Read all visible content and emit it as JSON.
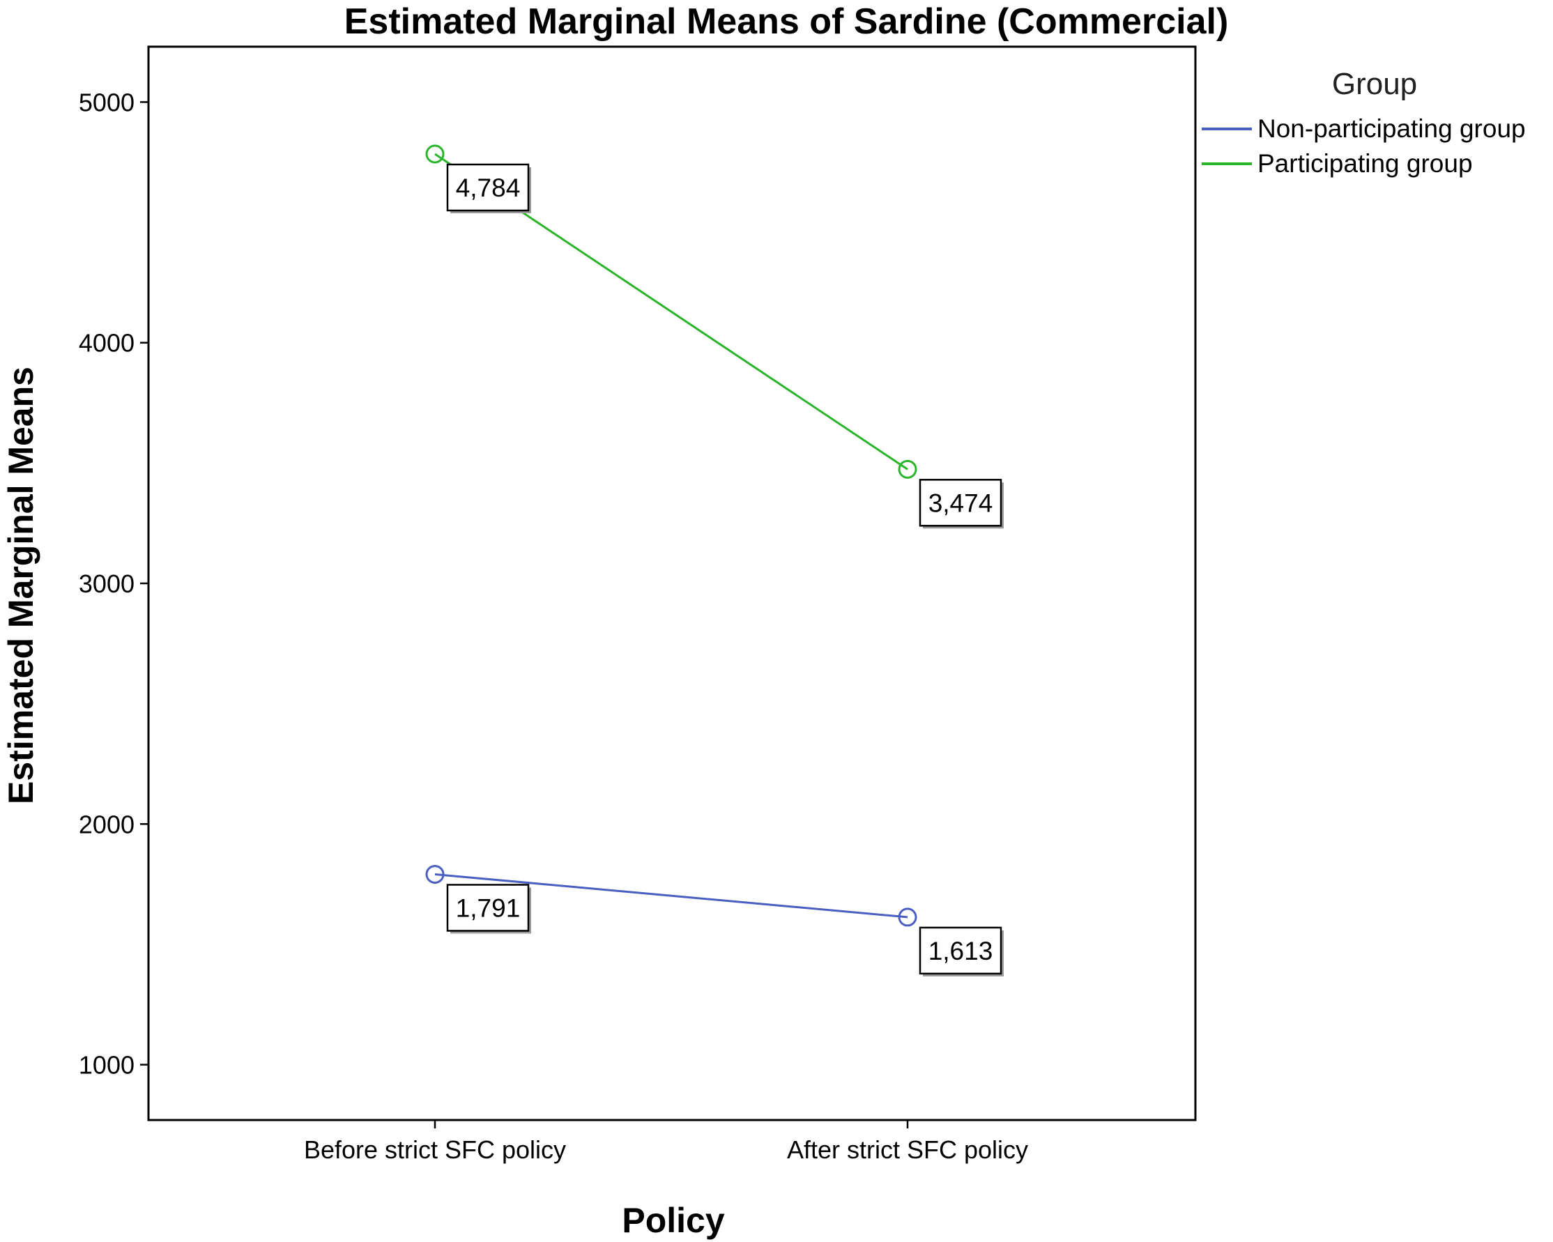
{
  "chart_data": {
    "type": "line",
    "title": "Estimated Marginal Means of Sardine (Commercial)",
    "xlabel": "Policy",
    "ylabel": "Estimated Marginal Means",
    "categories": [
      "Before strict SFC policy",
      "After strict SFC policy"
    ],
    "ylim": [
      770,
      5230
    ],
    "yticks": [
      1000,
      2000,
      3000,
      4000,
      5000
    ],
    "grid": false,
    "legend": {
      "title": "Group",
      "placement": "top-right, outside plot"
    },
    "series": [
      {
        "name": "Non-participating group",
        "color": "#4a5fc1",
        "values": [
          1791,
          1613
        ],
        "labels": [
          "1,791",
          "1,613"
        ]
      },
      {
        "name": "Participating group",
        "color": "#2bb52b",
        "values": [
          4784,
          3474
        ],
        "labels": [
          "4,784",
          "3,474"
        ]
      }
    ]
  }
}
